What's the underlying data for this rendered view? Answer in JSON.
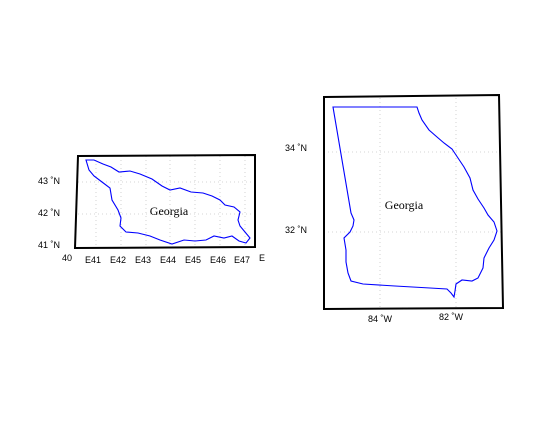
{
  "colors": {
    "background": "#ffffff",
    "frame": "#000000",
    "grid": "#c8c8c8",
    "border": "#0000ff",
    "text": "#000000"
  },
  "maps": [
    {
      "id": "country-georgia",
      "region_label": "Georgia",
      "lat_labels": [
        "43 ˚N",
        "42 ˚N",
        "41 ˚N"
      ],
      "lon_labels": [
        "40",
        "E41",
        "E42",
        "E43",
        "E44",
        "E45",
        "E46",
        "E47",
        "E"
      ]
    },
    {
      "id": "state-georgia",
      "region_label": "Georgia",
      "lat_labels": [
        "34 ˚N",
        "32 ˚N"
      ],
      "lon_labels": [
        "84 ˚W",
        "82 ˚W"
      ]
    }
  ]
}
